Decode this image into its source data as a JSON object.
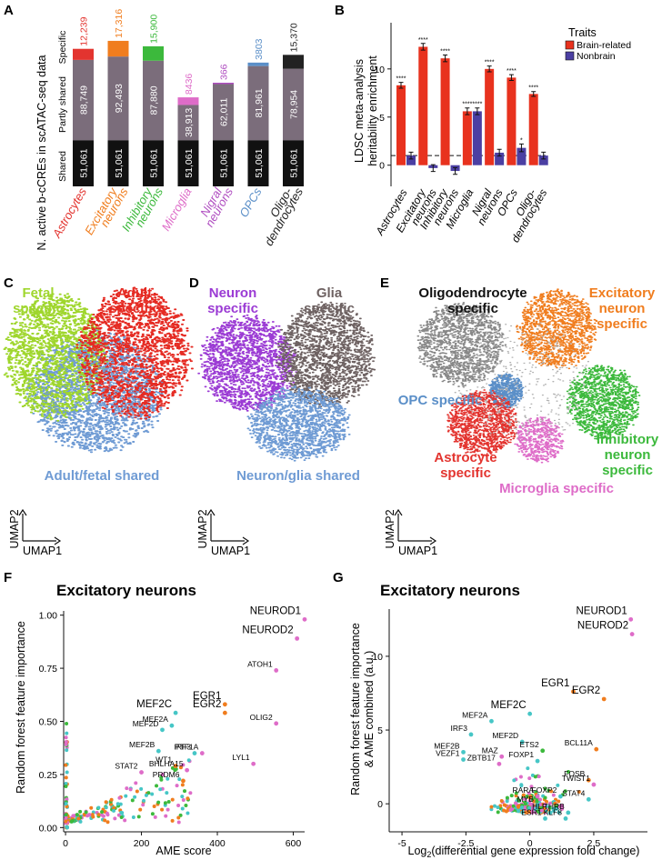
{
  "panel_letters": {
    "a": "A",
    "b": "B",
    "c": "C",
    "d": "D",
    "e": "E",
    "f": "F",
    "g": "G"
  },
  "colors": {
    "astro": "#e3342f",
    "exc": "#f07d1e",
    "inh": "#3cb93c",
    "micro": "#de6cc8",
    "nigral": "#b04fc1",
    "opc": "#5b8fc8",
    "oligo": "#222222",
    "shared": "#111111",
    "partly": "#7b6d7b",
    "brain": "#e8321e",
    "nonbrain": "#4b3fa3",
    "fetal": "#9fd62d",
    "adult": "#e52b23",
    "shared_umap": "#6f9bd4",
    "neuron": "#9b3bd4",
    "glia": "#6e6262",
    "oligo_umap": "#888888",
    "teal": "#46c6c6"
  },
  "panel_a": {
    "ylabel": "N. active b-cCREs in scATAC-seq data",
    "segment_labels": {
      "specific": "Specific",
      "partly": "Partly shared",
      "shared": "Shared"
    },
    "chart_data": {
      "type": "bar",
      "stacked": true,
      "categories": [
        "Astrocytes",
        "Excitatory neurons",
        "Inhibitory neurons",
        "Microglia",
        "Nigral neurons",
        "OPCs",
        "Oligo-dendrocytes"
      ],
      "category_lines": [
        [
          "Astrocytes"
        ],
        [
          "Excitatory",
          "neurons"
        ],
        [
          "Inhibitory",
          "neurons"
        ],
        [
          "Microglia"
        ],
        [
          "Nigral",
          "neurons"
        ],
        [
          "OPCs"
        ],
        [
          "Oligo-",
          "dendrocytes"
        ]
      ],
      "series": [
        {
          "name": "Shared",
          "values": [
            51061,
            51061,
            51061,
            51061,
            51061,
            51061,
            51061
          ]
        },
        {
          "name": "Partly shared",
          "values": [
            88749,
            92493,
            87880,
            38913,
            62011,
            81961,
            78954
          ]
        },
        {
          "name": "Specific",
          "values": [
            12239,
            17316,
            15900,
            8436,
            366,
            3803,
            15370
          ]
        }
      ],
      "value_labels": {
        "shared": [
          "51,061",
          "51,061",
          "51,061",
          "51,061",
          "51,061",
          "51,061",
          "51,061"
        ],
        "partly": [
          "88,749",
          "92,493",
          "87,880",
          "38,913",
          "62,011",
          "81,961",
          "78,954"
        ],
        "specific": [
          "12,239",
          "17,316",
          "15,900",
          "8436",
          "366",
          "3803",
          "15,370"
        ]
      }
    }
  },
  "panel_b": {
    "ylabel_lines": [
      "LDSC meta-analysis",
      "heritability enrichment"
    ],
    "chart_data": {
      "type": "bar",
      "categories": [
        "Astrocytes",
        "Excitatory neurons",
        "Inhibitory neurons",
        "Microglia",
        "Nigral neurons",
        "OPCs",
        "Oligo-dendrocytes"
      ],
      "category_lines": [
        [
          "Astrocytes"
        ],
        [
          "Excitatory",
          "neurons"
        ],
        [
          "Inhibitory",
          "neurons"
        ],
        [
          "Microglia"
        ],
        [
          "Nigral",
          "neurons"
        ],
        [
          "OPCs"
        ],
        [
          "Oligo-",
          "dendrocytes"
        ]
      ],
      "series": [
        {
          "name": "Brain-related",
          "values": [
            8.3,
            12.3,
            11.1,
            5.6,
            10.0,
            9.1,
            7.4
          ],
          "errors": [
            0.3,
            0.35,
            0.35,
            0.35,
            0.3,
            0.3,
            0.25
          ],
          "sig": [
            "****",
            "****",
            "****",
            "****",
            "****",
            "****",
            "****"
          ]
        },
        {
          "name": "Nonbrain",
          "values": [
            1.0,
            -0.3,
            -0.6,
            5.6,
            1.3,
            1.8,
            1.0
          ],
          "errors": [
            0.35,
            0.35,
            0.35,
            0.35,
            0.35,
            0.4,
            0.35
          ],
          "sig": [
            "",
            "",
            "",
            "****",
            "",
            "*",
            ""
          ]
        }
      ],
      "ylim": [
        -2.2,
        14.8
      ],
      "yticks": [
        0,
        5,
        10
      ],
      "reference_line": 1,
      "legend": {
        "title": "Traits",
        "entries": [
          "Brain-related",
          "Nonbrain"
        ],
        "position": "top-right"
      }
    }
  },
  "panel_c": {
    "labels": {
      "fetal": [
        "Fetal",
        "specific"
      ],
      "adult": [
        "Adult",
        "specific"
      ],
      "shared": "Adult/fetal shared"
    },
    "axis": {
      "x": "UMAP1",
      "y": "UMAP2"
    }
  },
  "panel_d": {
    "labels": {
      "neuron": [
        "Neuron",
        "specific"
      ],
      "glia": [
        "Glia",
        "specific"
      ],
      "shared": "Neuron/glia shared"
    },
    "axis": {
      "x": "UMAP1",
      "y": "UMAP2"
    }
  },
  "panel_e": {
    "labels": {
      "oligo": [
        "Oligodendrocyte",
        "specific"
      ],
      "exc": [
        "Excitatory",
        "neuron",
        "specific"
      ],
      "opc": "OPC specific",
      "astro": [
        "Astrocyte",
        "specific"
      ],
      "inh": [
        "Inhibitory",
        "neuron",
        "specific"
      ],
      "micro": "Microglia specific"
    },
    "axis": {
      "x": "UMAP1",
      "y": "UMAP2"
    }
  },
  "panel_f": {
    "title": "Excitatory neurons",
    "xlabel": "AME score",
    "ylabel": "Random forest feature importance",
    "chart_data": {
      "type": "scatter",
      "xlim": [
        -5,
        630
      ],
      "ylim": [
        -0.02,
        1.02
      ],
      "xticks": [
        0,
        200,
        400,
        600
      ],
      "yticks": [
        0.0,
        0.25,
        0.5,
        0.75,
        1.0
      ],
      "ytick_labels": [
        "0.00",
        "0.25",
        "0.50",
        "0.75",
        "1.00"
      ],
      "labeled_points": [
        {
          "label": "NEUROD1",
          "x": 630,
          "y": 0.98,
          "color": "#de6cc8",
          "size": "large"
        },
        {
          "label": "NEUROD2",
          "x": 610,
          "y": 0.89,
          "color": "#de6cc8",
          "size": "large"
        },
        {
          "label": "ATOH1",
          "x": 555,
          "y": 0.74,
          "color": "#de6cc8",
          "size": "small"
        },
        {
          "label": "MEF2C",
          "x": 290,
          "y": 0.54,
          "color": "#46c6c6",
          "size": "large"
        },
        {
          "label": "EGR1",
          "x": 420,
          "y": 0.58,
          "color": "#f07d1e",
          "size": "large"
        },
        {
          "label": "EGR2",
          "x": 420,
          "y": 0.54,
          "color": "#f07d1e",
          "size": "large"
        },
        {
          "label": "OLIG2",
          "x": 555,
          "y": 0.49,
          "color": "#de6cc8",
          "size": "small"
        },
        {
          "label": "MEF2D",
          "x": 255,
          "y": 0.46,
          "color": "#46c6c6",
          "size": "small"
        },
        {
          "label": "MEF2A",
          "x": 280,
          "y": 0.48,
          "color": "#46c6c6",
          "size": "small"
        },
        {
          "label": "MEF2B",
          "x": 245,
          "y": 0.36,
          "color": "#46c6c6",
          "size": "small"
        },
        {
          "label": "IRF3",
          "x": 340,
          "y": 0.35,
          "color": "#46c6c6",
          "size": "small"
        },
        {
          "label": "PTF1A",
          "x": 360,
          "y": 0.35,
          "color": "#de6cc8",
          "size": "small"
        },
        {
          "label": "STAT2",
          "x": 200,
          "y": 0.26,
          "color": "#de6cc8",
          "size": "small"
        },
        {
          "label": "WT1",
          "x": 290,
          "y": 0.29,
          "color": "#f07d1e",
          "size": "small"
        },
        {
          "label": "BHLHA15",
          "x": 320,
          "y": 0.27,
          "color": "#de6cc8",
          "size": "small"
        },
        {
          "label": "LYL1",
          "x": 495,
          "y": 0.3,
          "color": "#de6cc8",
          "size": "small"
        },
        {
          "label": "PRDM6",
          "x": 310,
          "y": 0.22,
          "color": "#f07d1e",
          "size": "small"
        }
      ]
    }
  },
  "panel_g": {
    "title": "Excitatory neurons",
    "xlabel_pre": "Log",
    "xlabel_sub": "2",
    "xlabel_post": "(differential gene expression fold change)",
    "ylabel_lines": [
      "Random forest feature importance",
      "& AME combined (a.u.)"
    ],
    "chart_data": {
      "type": "scatter",
      "xlim": [
        -5.5,
        4.6
      ],
      "ylim": [
        -1.9,
        13.2
      ],
      "xticks": [
        -5,
        -2.5,
        0,
        2.5
      ],
      "xtick_labels": [
        "-5",
        "-2.5",
        "0",
        "2.5"
      ],
      "yticks": [
        0,
        5,
        10
      ],
      "labeled_points": [
        {
          "label": "NEUROD1",
          "x": 3.95,
          "y": 12.5,
          "color": "#de6cc8",
          "size": "large"
        },
        {
          "label": "NEUROD2",
          "x": 4.0,
          "y": 11.5,
          "color": "#de6cc8",
          "size": "large"
        },
        {
          "label": "EGR1",
          "x": 1.7,
          "y": 7.6,
          "color": "#f07d1e",
          "size": "large"
        },
        {
          "label": "EGR2",
          "x": 2.9,
          "y": 7.1,
          "color": "#f07d1e",
          "size": "large"
        },
        {
          "label": "MEF2C",
          "x": 0.0,
          "y": 6.1,
          "color": "#46c6c6",
          "size": "large"
        },
        {
          "label": "MEF2A",
          "x": -1.5,
          "y": 5.6,
          "color": "#46c6c6",
          "size": "small"
        },
        {
          "label": "IRF3",
          "x": -2.3,
          "y": 4.7,
          "color": "#46c6c6",
          "size": "small"
        },
        {
          "label": "MEF2D",
          "x": -0.3,
          "y": 4.2,
          "color": "#46c6c6",
          "size": "small"
        },
        {
          "label": "ETS2",
          "x": 0.5,
          "y": 3.6,
          "color": "#3cb93c",
          "size": "small"
        },
        {
          "label": "BCL11A",
          "x": 2.6,
          "y": 3.7,
          "color": "#f07d1e",
          "size": "small"
        },
        {
          "label": "MEF2B",
          "x": -2.6,
          "y": 3.5,
          "color": "#46c6c6",
          "size": "small"
        },
        {
          "label": "MAZ",
          "x": -1.1,
          "y": 3.2,
          "color": "#de6cc8",
          "size": "small"
        },
        {
          "label": "FOXP1",
          "x": 0.3,
          "y": 2.9,
          "color": "#46c6c6",
          "size": "small"
        },
        {
          "label": "VEZF1",
          "x": -2.6,
          "y": 3.0,
          "color": "#46c6c6",
          "size": "small"
        },
        {
          "label": "ZBTB17",
          "x": -1.2,
          "y": 2.7,
          "color": "#de6cc8",
          "size": "small"
        },
        {
          "label": "FOSB",
          "x": 2.3,
          "y": 1.6,
          "color": "#f07d1e",
          "size": "small"
        },
        {
          "label": "TWIST1",
          "x": 2.5,
          "y": 1.3,
          "color": "#de6cc8",
          "size": "small"
        },
        {
          "label": "RARA",
          "x": 0.3,
          "y": 0.5,
          "color": "#de6cc8",
          "size": "small"
        },
        {
          "label": "FOXP2",
          "x": 1.2,
          "y": 0.5,
          "color": "#46c6c6",
          "size": "small"
        },
        {
          "label": "STAT4",
          "x": 2.3,
          "y": 0.3,
          "color": "#46c6c6",
          "size": "small"
        },
        {
          "label": "MYB",
          "x": 0.3,
          "y": -0.1,
          "color": "#46c6c6",
          "size": "small"
        },
        {
          "label": "HLF",
          "x": 0.8,
          "y": -0.6,
          "color": "#46c6c6",
          "size": "small"
        },
        {
          "label": "THRB",
          "x": 1.5,
          "y": -0.6,
          "color": "#46c6c6",
          "size": "small"
        },
        {
          "label": "ESR1",
          "x": 0.6,
          "y": -1.0,
          "color": "#46c6c6",
          "size": "small"
        },
        {
          "label": "KLF8",
          "x": 1.4,
          "y": -1.0,
          "color": "#46c6c6",
          "size": "small"
        }
      ]
    }
  }
}
